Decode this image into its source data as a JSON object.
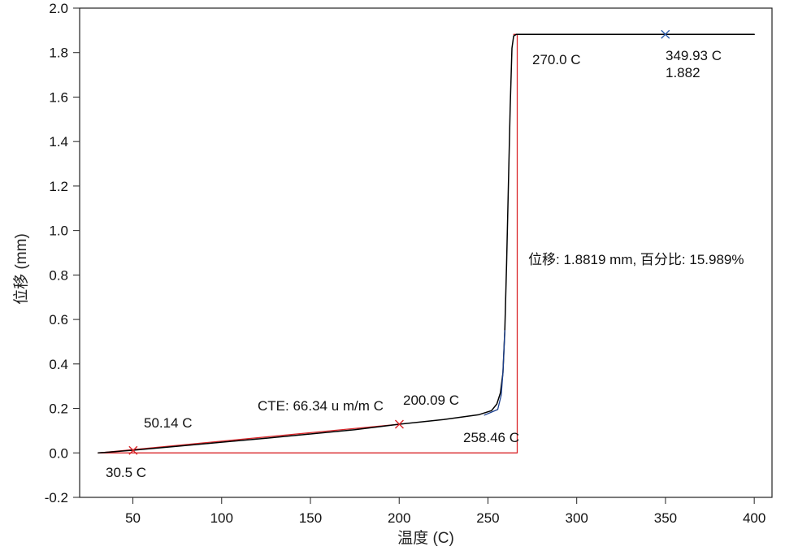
{
  "chart_data": {
    "type": "line",
    "title": "",
    "xlabel": "温度 (C)",
    "ylabel": "位移 (mm)",
    "xlim": [
      20,
      410
    ],
    "ylim": [
      -0.2,
      2.0
    ],
    "xticks": [
      50,
      100,
      150,
      200,
      250,
      300,
      350,
      400
    ],
    "yticks": [
      -0.2,
      0.0,
      0.2,
      0.4,
      0.6,
      0.8,
      1.0,
      1.2,
      1.4,
      1.6,
      1.8,
      2.0
    ],
    "xtick_labels": [
      "50",
      "100",
      "150",
      "200",
      "250",
      "300",
      "350",
      "400"
    ],
    "ytick_labels": [
      "-0.2",
      "0.0",
      "0.2",
      "0.4",
      "0.6",
      "0.8",
      "1.0",
      "1.2",
      "1.4",
      "1.6",
      "1.8",
      "2.0"
    ],
    "grid": false,
    "legend": "none",
    "series": [
      {
        "color": "#000000",
        "x": [
          30.5,
          50,
          75,
          100,
          125,
          150,
          175,
          200.09,
          225,
          245,
          252,
          255,
          257,
          258.46,
          259.5,
          260.5,
          261.5,
          262.5,
          263.5,
          264.5,
          266,
          270,
          300,
          349.93,
          400
        ],
        "y": [
          0.0,
          0.012,
          0.03,
          0.048,
          0.066,
          0.085,
          0.104,
          0.129,
          0.15,
          0.172,
          0.19,
          0.22,
          0.27,
          0.36,
          0.55,
          0.85,
          1.2,
          1.55,
          1.82,
          1.875,
          1.882,
          1.882,
          1.882,
          1.882,
          1.882
        ]
      },
      {
        "color": "#1a3f8f",
        "x": [
          248,
          255.5,
          257.5,
          258.46,
          259.5
        ],
        "y": [
          0.17,
          0.195,
          0.26,
          0.36,
          0.55
        ]
      },
      {
        "color": "#d9262a",
        "x": [
          30.5,
          200.09
        ],
        "y": [
          0.0,
          0.129
        ]
      },
      {
        "color": "#d9262a",
        "x": [
          30.5,
          266.5,
          266.5
        ],
        "y": [
          0.0,
          0.0,
          1.8819
        ]
      },
      {
        "color": "#d9262a",
        "x": [
          264.5,
          266.5
        ],
        "y": [
          1.8819,
          1.8819
        ]
      }
    ],
    "markers": [
      {
        "x": 50.14,
        "y": 0.011,
        "shape": "x",
        "color": "#d9262a"
      },
      {
        "x": 200.09,
        "y": 0.129,
        "shape": "x",
        "color": "#d9262a"
      },
      {
        "x": 349.93,
        "y": 1.882,
        "shape": "x",
        "color": "#2a5aa8"
      }
    ],
    "annotations": [
      {
        "text": "30.5 C"
      },
      {
        "text": "50.14 C"
      },
      {
        "text": "CTE: 66.34 u m/m C"
      },
      {
        "text": "200.09 C"
      },
      {
        "text": "258.46 C"
      },
      {
        "text": "270.0 C"
      },
      {
        "text": "349.93 C"
      },
      {
        "text": "1.882"
      },
      {
        "text": "位移: 1.8819 mm, 百分比: 15.989%"
      }
    ],
    "colors": {
      "axis": "#222222",
      "curve": "#000000",
      "fit": "#1a3f8f",
      "analysis": "#d9262a",
      "marker_end": "#2a5aa8"
    }
  }
}
